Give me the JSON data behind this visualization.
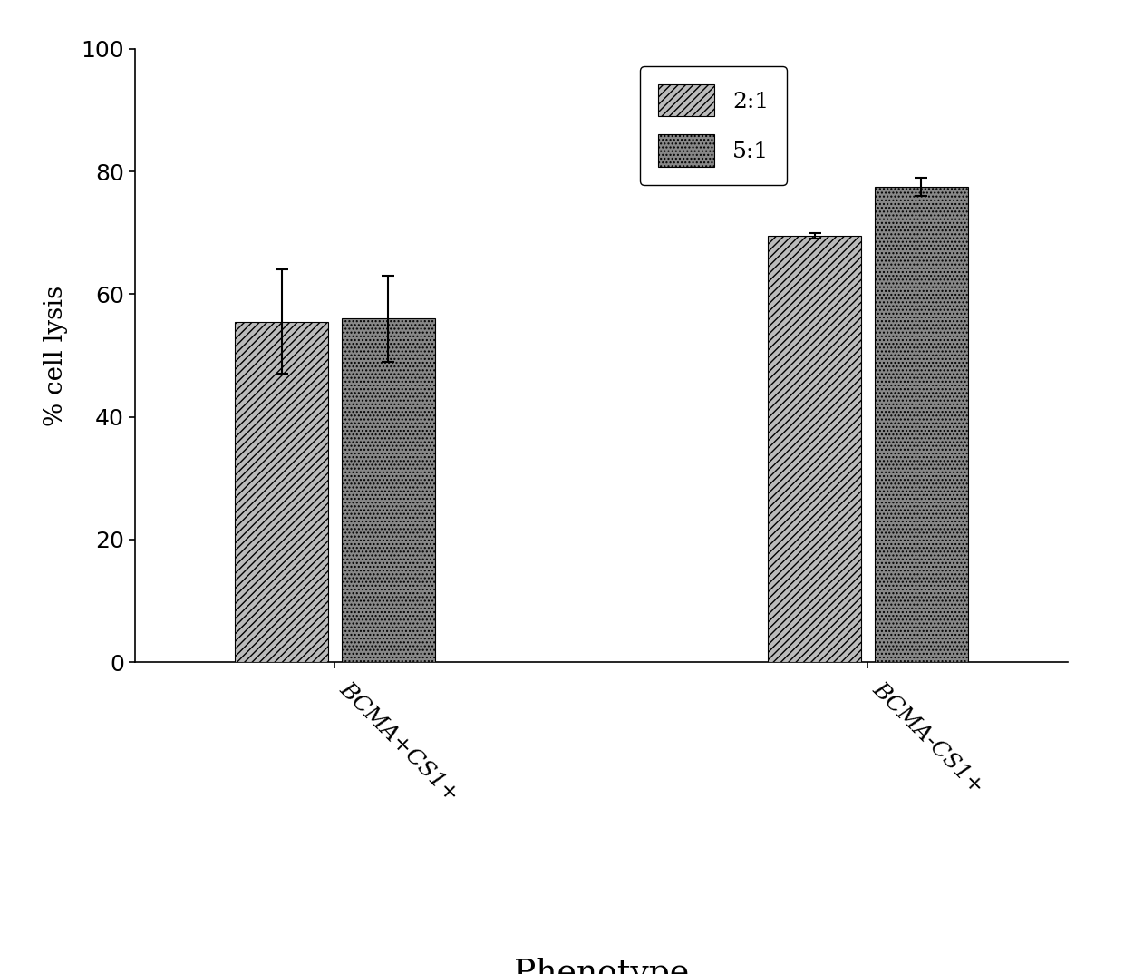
{
  "categories": [
    "BCMA+CS1+",
    "BCMA-CS1+"
  ],
  "series": [
    {
      "label": "2:1",
      "values": [
        55.5,
        69.5
      ],
      "errors": [
        8.5,
        0.5
      ],
      "hatch": "////",
      "color": "#bbbbbb"
    },
    {
      "label": "5:1",
      "values": [
        56.0,
        77.5
      ],
      "errors": [
        7.0,
        1.5
      ],
      "hatch": "....",
      "color": "#888888"
    }
  ],
  "ylabel": "% cell lysis",
  "xlabel": "Phenotype",
  "ylim": [
    0,
    100
  ],
  "yticks": [
    0,
    20,
    40,
    60,
    80,
    100
  ],
  "bar_width": 0.28,
  "group_centers": [
    1.0,
    2.6
  ],
  "background_color": "#ffffff",
  "axis_fontsize": 20,
  "xlabel_fontsize": 26,
  "tick_fontsize": 18,
  "legend_fontsize": 18,
  "xtick_fontsize": 18
}
